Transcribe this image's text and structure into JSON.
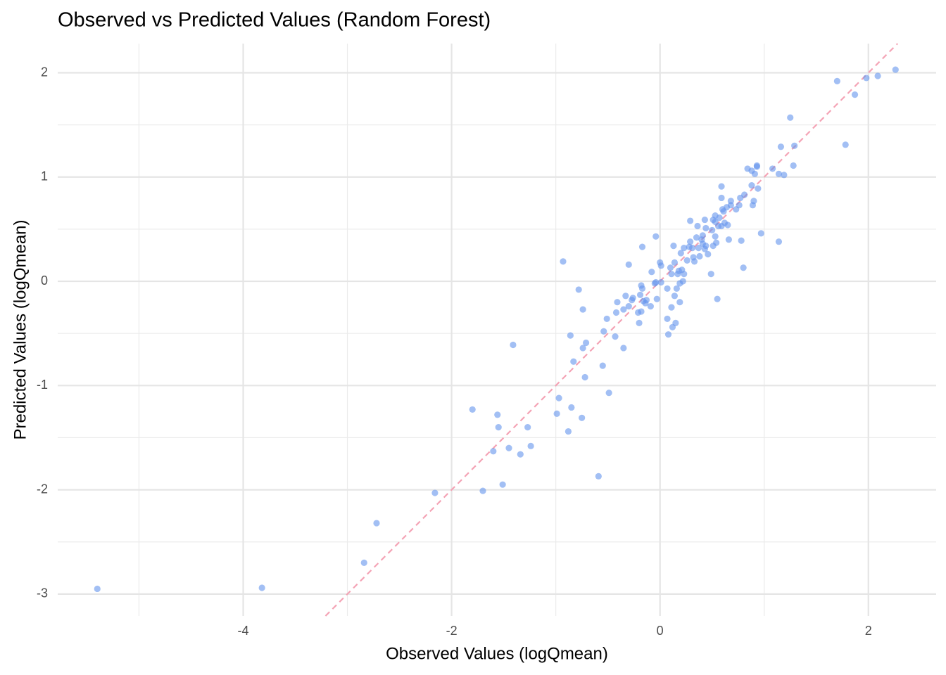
{
  "chart_data": {
    "type": "scatter",
    "title": "Observed vs Predicted Values (Random Forest)",
    "x_label": "Observed Values (logQmean)",
    "y_label": "Predicted Values (logQmean)",
    "color": "#6495ed",
    "x": [
      -5.4,
      -3.82,
      -2.84,
      -2.72,
      -2.16,
      -1.7,
      -1.51,
      -1.8,
      -1.56,
      -1.55,
      -1.6,
      -1.45,
      -1.34,
      -1.27,
      -1.24,
      -1.41,
      -0.99,
      -0.97,
      -0.88,
      -0.85,
      -0.75,
      -0.59,
      -0.49,
      -0.72,
      -0.83,
      -0.74,
      -0.71,
      -0.86,
      -0.55,
      -0.54,
      -0.51,
      -0.43,
      -0.35,
      -0.74,
      -0.78,
      -0.93,
      -0.3,
      -0.17,
      -0.04,
      -0.42,
      -0.41,
      -0.35,
      -0.33,
      -0.3,
      -0.27,
      -0.26,
      -0.21,
      -0.2,
      -0.18,
      -0.18,
      -0.17,
      -0.19,
      -0.16,
      -0.14,
      -0.13,
      -0.09,
      -0.08,
      -0.05,
      -0.04,
      -0.03,
      0.01,
      0.0,
      0.01,
      0.07,
      0.07,
      0.08,
      0.11,
      0.12,
      0.15,
      0.14,
      0.16,
      0.19,
      0.19,
      0.22,
      0.1,
      0.11,
      0.14,
      0.13,
      0.17,
      0.18,
      0.21,
      0.23,
      0.2,
      0.23,
      0.26,
      0.28,
      0.29,
      0.31,
      0.29,
      0.32,
      0.33,
      0.35,
      0.36,
      0.38,
      0.37,
      0.4,
      0.41,
      0.41,
      0.43,
      0.44,
      0.44,
      0.43,
      0.46,
      0.49,
      0.51,
      0.51,
      0.5,
      0.53,
      0.53,
      0.54,
      0.53,
      0.55,
      0.56,
      0.57,
      0.59,
      0.59,
      0.6,
      0.61,
      0.59,
      0.62,
      0.64,
      0.65,
      0.66,
      0.68,
      0.68,
      0.73,
      0.76,
      0.78,
      0.77,
      0.81,
      0.8,
      0.84,
      0.88,
      0.91,
      0.93,
      0.93,
      0.88,
      0.89,
      0.9,
      0.94,
      0.97,
      1.08,
      1.14,
      1.19,
      1.14,
      1.16,
      1.28,
      1.29,
      1.25,
      1.7,
      1.78,
      1.87,
      1.98,
      2.09,
      2.26
    ],
    "values": [
      -2.95,
      -2.94,
      -2.7,
      -2.32,
      -2.03,
      -2.01,
      -1.95,
      -1.23,
      -1.28,
      -1.4,
      -1.63,
      -1.6,
      -1.66,
      -1.4,
      -1.58,
      -0.61,
      -1.27,
      -1.12,
      -1.44,
      -1.21,
      -1.31,
      -1.87,
      -1.07,
      -0.92,
      -0.77,
      -0.64,
      -0.59,
      -0.52,
      -0.81,
      -0.48,
      -0.36,
      -0.53,
      -0.64,
      -0.27,
      -0.08,
      0.19,
      0.16,
      0.33,
      0.43,
      -0.3,
      -0.2,
      -0.27,
      -0.14,
      -0.24,
      -0.18,
      -0.16,
      -0.3,
      -0.4,
      -0.29,
      -0.04,
      -0.07,
      -0.13,
      -0.19,
      -0.21,
      -0.18,
      -0.24,
      0.09,
      -0.02,
      -0.01,
      -0.17,
      -0.01,
      0.18,
      0.15,
      -0.07,
      -0.36,
      -0.51,
      -0.25,
      -0.44,
      -0.4,
      -0.14,
      -0.07,
      -0.2,
      -0.02,
      0.0,
      0.13,
      0.07,
      0.18,
      0.34,
      0.07,
      0.1,
      0.11,
      0.07,
      0.27,
      0.32,
      0.2,
      0.33,
      0.38,
      0.32,
      0.58,
      0.23,
      0.19,
      0.42,
      0.53,
      0.24,
      0.32,
      0.4,
      0.44,
      0.36,
      0.31,
      0.34,
      0.51,
      0.59,
      0.26,
      0.07,
      0.59,
      0.34,
      0.49,
      0.57,
      0.63,
      0.37,
      0.43,
      -0.17,
      0.53,
      0.61,
      0.91,
      0.8,
      0.69,
      0.67,
      0.53,
      0.56,
      0.71,
      0.54,
      0.4,
      0.73,
      0.77,
      0.69,
      0.73,
      0.39,
      0.8,
      0.83,
      0.13,
      1.08,
      1.06,
      1.03,
      1.11,
      1.1,
      0.92,
      0.73,
      0.77,
      0.89,
      0.46,
      1.08,
      1.03,
      1.02,
      0.38,
      1.29,
      1.11,
      1.3,
      1.57,
      1.92,
      1.31,
      1.79,
      1.95,
      1.97,
      2.03
    ],
    "xlim": [
      -5.78,
      2.65
    ],
    "ylim": [
      -3.21,
      2.28
    ],
    "xticks": [
      -4,
      -2,
      0,
      2
    ],
    "yticks": [
      -3,
      -2,
      -1,
      0,
      1,
      2
    ],
    "x_minor_ticks": [
      -5,
      -3,
      -1,
      1
    ],
    "y_minor_ticks": [
      -2.5,
      -1.5,
      -0.5,
      0.5,
      1.5
    ],
    "grid": true,
    "reference_line": {
      "slope": 1,
      "intercept": 0,
      "color": "#f4a3b5",
      "dashed": true
    }
  }
}
